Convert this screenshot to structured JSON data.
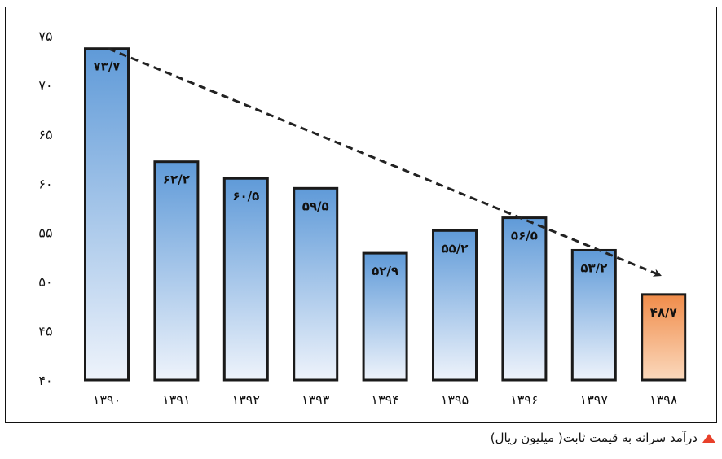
{
  "chart_data": {
    "type": "bar",
    "categories": [
      "۱۳۹۰",
      "۱۳۹۱",
      "۱۳۹۲",
      "۱۳۹۳",
      "۱۳۹۴",
      "۱۳۹۵",
      "۱۳۹۶",
      "۱۳۹۷",
      "۱۳۹۸"
    ],
    "values": [
      73.7,
      62.2,
      60.5,
      59.5,
      52.9,
      55.2,
      56.5,
      53.2,
      48.7
    ],
    "data_labels": [
      "۷۳/۷",
      "۶۲/۲",
      "۶۰/۵",
      "۵۹/۵",
      "۵۲/۹",
      "۵۵/۲",
      "۵۶/۵",
      "۵۳/۲",
      "۴۸/۷"
    ],
    "y_ticks": [
      40,
      45,
      50,
      55,
      60,
      65,
      70,
      75
    ],
    "y_tick_labels": [
      "۴۰",
      "۴۵",
      "۵۰",
      "۵۵",
      "۶۰",
      "۶۵",
      "۷۰",
      "۷۵"
    ],
    "ylim": [
      40,
      75
    ],
    "grid": false,
    "legend": "none",
    "trend_line": {
      "style": "dashed",
      "direction": "decreasing",
      "arrow": true
    },
    "colors": {
      "bar_top": "#5f9ad8",
      "bar_bottom": "#eef3fb",
      "highlight_top": "#f08c4a",
      "highlight_bottom": "#fbd9bd",
      "bar_border": "#1a1a1a"
    },
    "highlight_index": 8
  },
  "caption": {
    "text": "درآمد سرانه به قیمت ثابت( میلیون ریال)",
    "marker_color": "#e8402a"
  }
}
